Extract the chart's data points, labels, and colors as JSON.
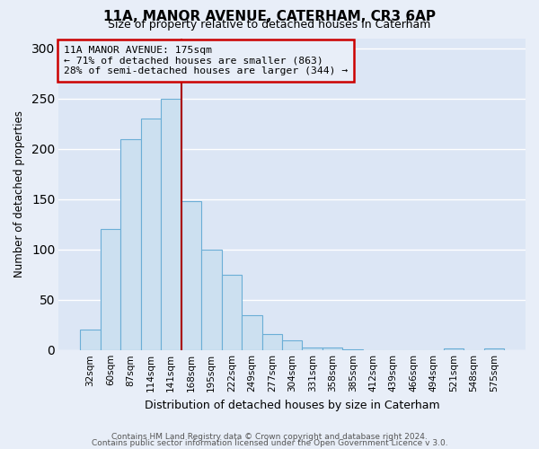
{
  "title": "11A, MANOR AVENUE, CATERHAM, CR3 6AP",
  "subtitle": "Size of property relative to detached houses in Caterham",
  "xlabel": "Distribution of detached houses by size in Caterham",
  "ylabel": "Number of detached properties",
  "bar_labels": [
    "32sqm",
    "60sqm",
    "87sqm",
    "114sqm",
    "141sqm",
    "168sqm",
    "195sqm",
    "222sqm",
    "249sqm",
    "277sqm",
    "304sqm",
    "331sqm",
    "358sqm",
    "385sqm",
    "412sqm",
    "439sqm",
    "466sqm",
    "494sqm",
    "521sqm",
    "548sqm",
    "575sqm"
  ],
  "bar_values": [
    20,
    120,
    210,
    230,
    250,
    148,
    100,
    75,
    35,
    16,
    10,
    3,
    3,
    1,
    0,
    0,
    0,
    0,
    2,
    0,
    2
  ],
  "bar_color": "#cce0f0",
  "bar_edge_color": "#6baed6",
  "vline_x_index": 5,
  "annotation_title": "11A MANOR AVENUE: 175sqm",
  "annotation_line1": "← 71% of detached houses are smaller (863)",
  "annotation_line2": "28% of semi-detached houses are larger (344) →",
  "vline_color": "#aa0000",
  "annotation_box_edge": "#cc0000",
  "footer1": "Contains HM Land Registry data © Crown copyright and database right 2024.",
  "footer2": "Contains public sector information licensed under the Open Government Licence v 3.0.",
  "bg_color": "#e8eef8",
  "plot_bg_color": "#dce6f5",
  "ylim": [
    0,
    310
  ],
  "yticks": [
    0,
    50,
    100,
    150,
    200,
    250,
    300
  ],
  "figsize": [
    6.0,
    5.0
  ],
  "dpi": 100
}
